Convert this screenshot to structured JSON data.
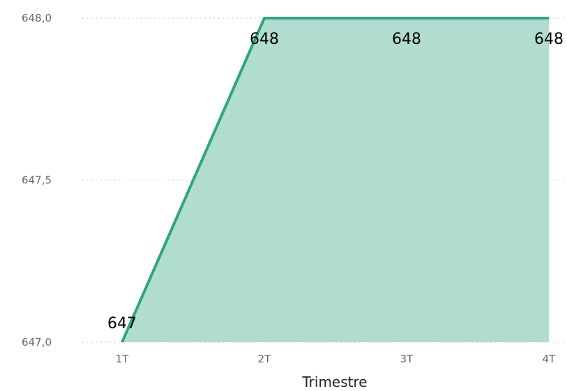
{
  "chart_data": {
    "type": "area",
    "categories": [
      "1T",
      "2T",
      "3T",
      "4T"
    ],
    "series": [
      {
        "values": [
          647,
          648,
          648,
          648
        ]
      }
    ],
    "data_labels": [
      "647",
      "648",
      "648",
      "648"
    ],
    "xlabel": "Trimestre",
    "ylabel": "",
    "ylim": [
      647.0,
      648.0
    ],
    "yticks": [
      647.0,
      647.5,
      648.0
    ],
    "ytick_labels": [
      "647,0",
      "647,5",
      "648,0"
    ],
    "grid": true,
    "colors": {
      "line": "#2ea482",
      "fill": "#b0ddd0"
    }
  }
}
